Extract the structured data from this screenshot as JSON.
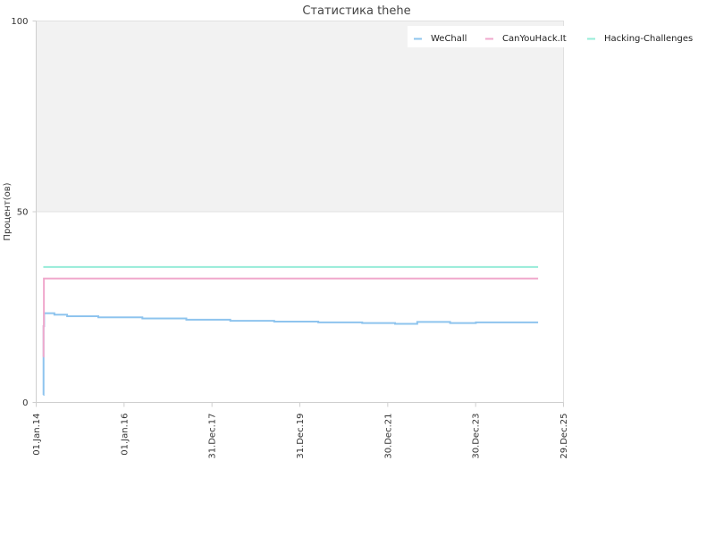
{
  "chart_data": {
    "type": "line",
    "title": "Статистика thehe",
    "xlabel": "",
    "ylabel": "Процент(ов)",
    "ylim": [
      0,
      100
    ],
    "yticks": [
      0,
      50,
      100
    ],
    "xlim": [
      "2014-01-01",
      "2025-12-29"
    ],
    "xticks": [
      {
        "date": "2014-01-01",
        "label": "01.Jan.14"
      },
      {
        "date": "2016-01-01",
        "label": "01.Jan.16"
      },
      {
        "date": "2017-12-31",
        "label": "31.Dec.17"
      },
      {
        "date": "2019-12-31",
        "label": "31.Dec.19"
      },
      {
        "date": "2021-12-30",
        "label": "30.Dec.21"
      },
      {
        "date": "2023-12-30",
        "label": "30.Dec.23"
      },
      {
        "date": "2025-12-29",
        "label": "29.Dec.25"
      }
    ],
    "grid": false,
    "legend_position": "top-right",
    "upper_band_fill": "#f2f2f2",
    "series": [
      {
        "name": "WeChall",
        "color": "#8ec4ee",
        "step": true,
        "points": [
          [
            "2014-03-01",
            2
          ],
          [
            "2014-03-03",
            20
          ],
          [
            "2014-03-08",
            23.4
          ],
          [
            "2014-06-01",
            23.0
          ],
          [
            "2014-09-15",
            22.6
          ],
          [
            "2015-06-01",
            22.3
          ],
          [
            "2016-06-01",
            22.0
          ],
          [
            "2017-06-01",
            21.7
          ],
          [
            "2018-06-01",
            21.4
          ],
          [
            "2019-06-01",
            21.2
          ],
          [
            "2020-06-01",
            21.0
          ],
          [
            "2021-06-01",
            20.8
          ],
          [
            "2022-03-01",
            20.6
          ],
          [
            "2022-09-01",
            21.1
          ],
          [
            "2023-06-01",
            20.8
          ],
          [
            "2024-01-01",
            21.0
          ],
          [
            "2025-06-01",
            21.0
          ]
        ]
      },
      {
        "name": "CanYouHack.It",
        "color": "#f0a8cc",
        "step": true,
        "points": [
          [
            "2014-03-01",
            12
          ],
          [
            "2014-03-03",
            20
          ],
          [
            "2014-03-06",
            32.5
          ],
          [
            "2025-06-01",
            32.5
          ]
        ]
      },
      {
        "name": "Hacking-Challenges",
        "color": "#96ecd8",
        "step": true,
        "points": [
          [
            "2014-03-01",
            35.5
          ],
          [
            "2025-06-01",
            35.5
          ]
        ]
      }
    ]
  }
}
